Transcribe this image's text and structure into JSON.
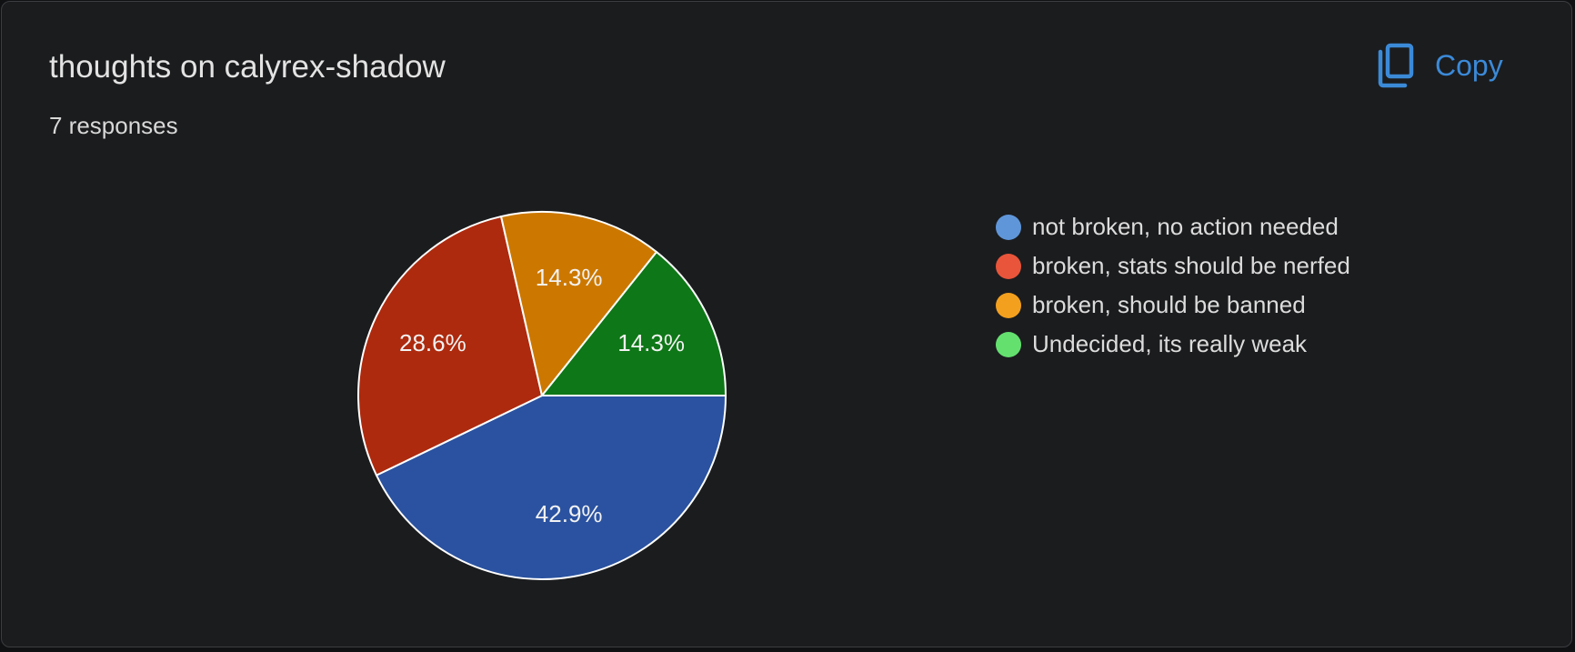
{
  "card": {
    "title": "thoughts on calyrex-shadow",
    "responses": "7 responses",
    "copy_label": "Copy",
    "copy_icon": "copy-icon"
  },
  "colors": {
    "background": "#1b1c1e",
    "copy_accent": "#3b8ad8",
    "slice_outline": "#ffffff"
  },
  "chart_data": {
    "type": "pie",
    "title": "thoughts on calyrex-shadow",
    "total_responses": 7,
    "legend_position": "right",
    "slices": [
      {
        "label": "not broken, no action needed",
        "value": 3,
        "percent_label": "42.9%",
        "color": "#2a52a0",
        "legend_color": "#5f96d9"
      },
      {
        "label": "broken, stats should be nerfed",
        "value": 2,
        "percent_label": "28.6%",
        "color": "#ad2a0e",
        "legend_color": "#e8553a"
      },
      {
        "label": "broken, should be banned",
        "value": 1,
        "percent_label": "14.3%",
        "color": "#cc7800",
        "legend_color": "#f3a01f"
      },
      {
        "label": "Undecided, its really weak",
        "value": 1,
        "percent_label": "14.3%",
        "color": "#0e7717",
        "legend_color": "#64e06f"
      }
    ]
  }
}
